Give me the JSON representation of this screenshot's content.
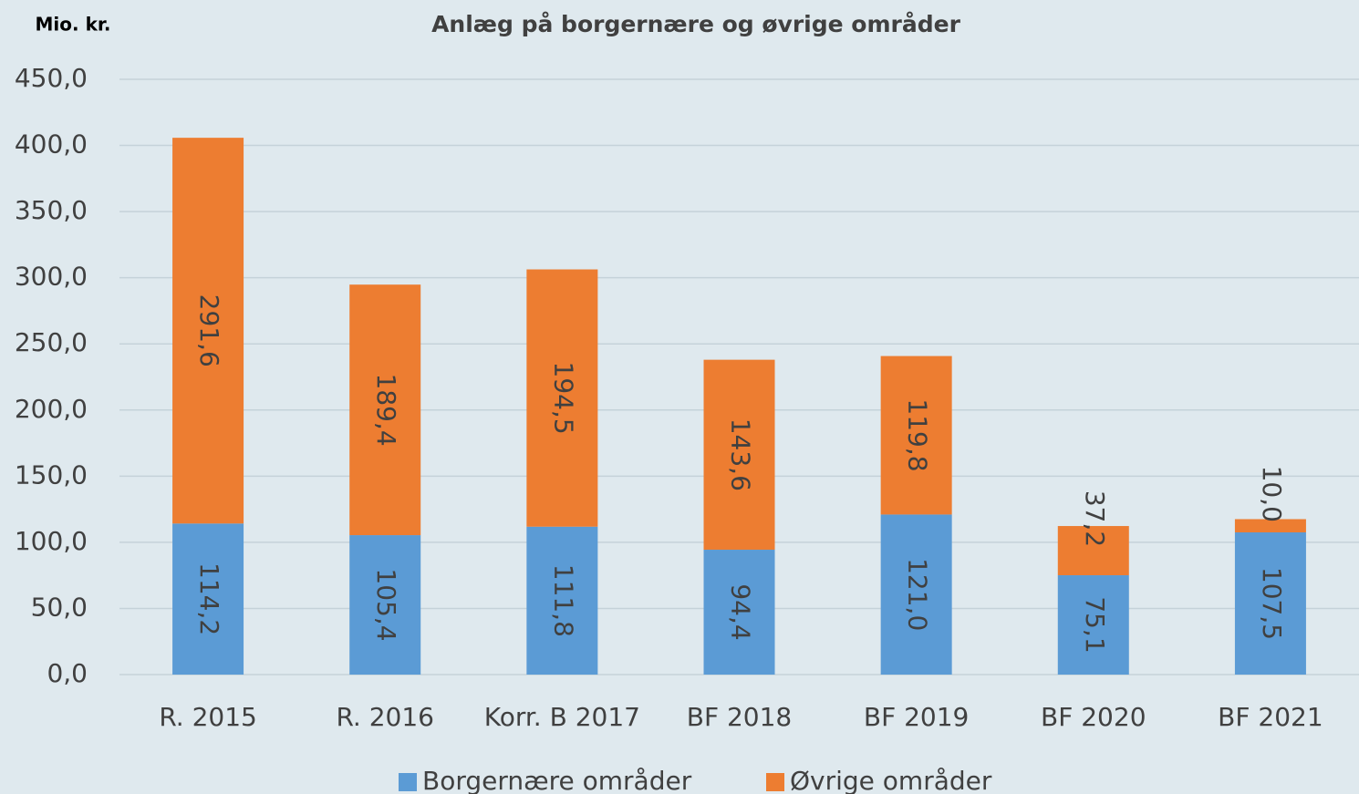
{
  "chart_data": {
    "type": "stacked_bar",
    "title": "Anlæg på borgernære og øvrige områder",
    "y_label": "Mio. kr.",
    "categories": [
      "R. 2015",
      "R. 2016",
      "Korr. B 2017",
      "BF 2018",
      "BF 2019",
      "BF 2020",
      "BF 2021"
    ],
    "series": [
      {
        "name": "Borgernære områder",
        "color": "#5b9bd5",
        "values": [
          114.2,
          105.4,
          111.8,
          94.4,
          121.0,
          75.1,
          107.5
        ],
        "value_labels": [
          "114,2",
          "105,4",
          "111,8",
          "94,4",
          "121,0",
          "75,1",
          "107,5"
        ]
      },
      {
        "name": "Øvrige områder",
        "color": "#ed7d31",
        "values": [
          291.6,
          189.4,
          194.5,
          143.6,
          119.8,
          37.2,
          10.0
        ],
        "value_labels": [
          "291,6",
          "189,4",
          "194,5",
          "143,6",
          "119,8",
          "37,2",
          "10,0"
        ]
      }
    ],
    "ylim": [
      0,
      450
    ],
    "yticks": [
      {
        "value": 0,
        "label": "0,0"
      },
      {
        "value": 50,
        "label": "50,0"
      },
      {
        "value": 100,
        "label": "100,0"
      },
      {
        "value": 150,
        "label": "150,0"
      },
      {
        "value": 200,
        "label": "200,0"
      },
      {
        "value": 250,
        "label": "250,0"
      },
      {
        "value": 300,
        "label": "300,0"
      },
      {
        "value": 350,
        "label": "350,0"
      },
      {
        "value": 400,
        "label": "400,0"
      },
      {
        "value": 450,
        "label": "450,0"
      }
    ],
    "grid": true,
    "legend": "bottom"
  }
}
